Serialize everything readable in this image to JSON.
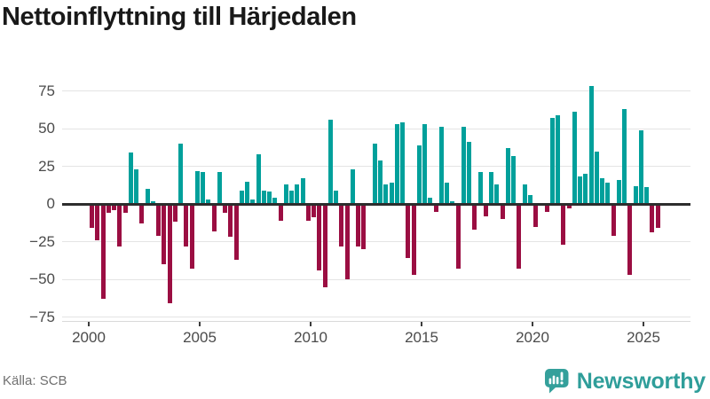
{
  "title": "Nettoinflyttning till Härjedalen",
  "source": "Källa: SCB",
  "brand": "Newsworthy",
  "colors": {
    "positive": "#00a09b",
    "negative": "#9b0e42",
    "logo": "#35a09b",
    "title_text": "#191919",
    "axis_text": "#4b4b4b",
    "gridline": "#e4e4e4",
    "zero_line": "#2d2d2d"
  },
  "chart_data": {
    "type": "bar",
    "title": "Nettoinflyttning till Härjedalen",
    "frequency": "quarterly",
    "x_start": "2000 Q1",
    "x_end": "2025 Q3",
    "values": [
      -16,
      -24,
      -63,
      -6,
      -4,
      -28,
      -6,
      34,
      23,
      -13,
      10,
      2,
      -21,
      -40,
      -66,
      -12,
      40,
      -28,
      -43,
      22,
      21,
      3,
      -18,
      21,
      -6,
      -22,
      -37,
      9,
      15,
      3,
      33,
      9,
      8,
      4,
      -11,
      13,
      9,
      13,
      17,
      -11,
      -9,
      -44,
      -55,
      56,
      9,
      -28,
      -50,
      23,
      -28,
      -30,
      0,
      40,
      29,
      13,
      14,
      53,
      54,
      -36,
      -47,
      39,
      53,
      4,
      -5,
      51,
      14,
      2,
      -43,
      51,
      41,
      -17,
      21,
      -8,
      21,
      13,
      -10,
      37,
      32,
      -43,
      13,
      6,
      -15,
      0,
      -5,
      57,
      59,
      -27,
      -3,
      61,
      18,
      20,
      78,
      35,
      17,
      14,
      -21,
      16,
      63,
      -47,
      12,
      49,
      11,
      -19,
      -16
    ],
    "xticks": [
      "2000",
      "2005",
      "2010",
      "2015",
      "2020",
      "2025"
    ],
    "yticks": [
      75,
      50,
      25,
      0,
      -25,
      -50,
      -75
    ],
    "ylim": [
      -77,
      85
    ],
    "grid": true,
    "legend": "none",
    "positive_color": "#00a09b",
    "negative_color": "#9b0e42"
  }
}
